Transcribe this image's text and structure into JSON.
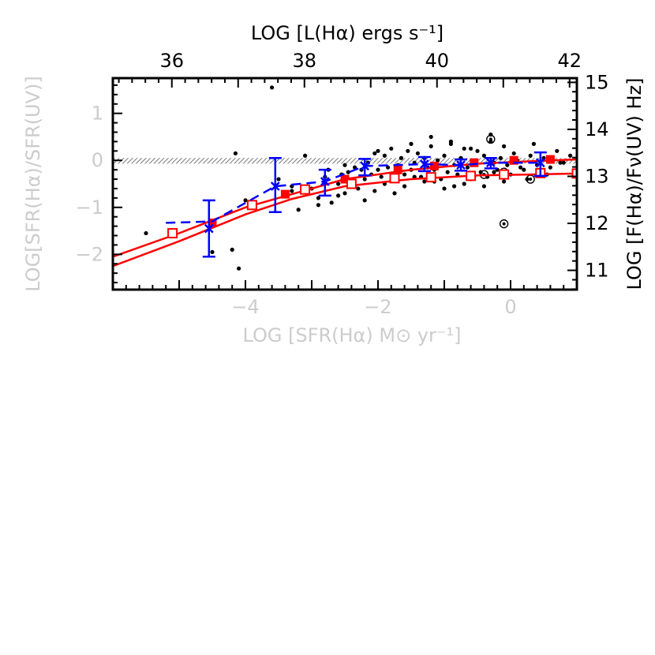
{
  "chart_data": {
    "type": "scatter",
    "title": "",
    "xlabel": "LOG [SFR(Hα) M⊙ yr⁻¹]",
    "ylabel": "LOG[SFR(Hα)/SFR(UV)]",
    "top_xlabel": "LOG [L(Hα) ergs s⁻¹]",
    "right_ylabel": "LOG [F(Hα)/Fν(UV) Hz]",
    "xlim": [
      -6.0,
      1.0
    ],
    "ylim": [
      -2.75,
      1.75
    ],
    "top_xlim": [
      35.11,
      42.11
    ],
    "right_ylim": [
      10.59,
      15.09
    ],
    "x_ticks": [
      -4,
      -2,
      0
    ],
    "x_tick_labels": [
      "−4",
      "−2",
      "0"
    ],
    "y_ticks": [
      -2,
      -1,
      0,
      1
    ],
    "y_tick_labels": [
      "−2",
      "−1",
      "0",
      "1"
    ],
    "top_ticks": [
      36,
      38,
      40,
      42
    ],
    "top_tick_labels": [
      "36",
      "38",
      "40",
      "42"
    ],
    "right_ticks": [
      11,
      12,
      13,
      14,
      15
    ],
    "right_tick_labels": [
      "11",
      "12",
      "13",
      "14",
      "15"
    ],
    "grid": false,
    "hatched_band": {
      "y_low": -0.07,
      "y_high": 0.05,
      "color": "#777777"
    },
    "series": [
      {
        "style": "points",
        "color": "#000000",
        "x": [
          -5.5,
          -4.2,
          -4.5,
          -4.1,
          -3.5,
          -3.3,
          -3.2,
          -3.0,
          -2.9,
          -2.8,
          -2.7,
          -2.6,
          -2.55,
          -2.5,
          -2.45,
          -2.4,
          -2.35,
          -2.3,
          -2.25,
          -2.2,
          -2.15,
          -2.1,
          -2.05,
          -2.0,
          -1.95,
          -1.9,
          -1.85,
          -1.8,
          -1.75,
          -1.7,
          -1.65,
          -1.6,
          -1.55,
          -1.5,
          -1.45,
          -1.4,
          -1.35,
          -1.3,
          -1.25,
          -1.2,
          -1.15,
          -1.1,
          -1.05,
          -1.0,
          -0.95,
          -0.9,
          -0.85,
          -0.8,
          -0.75,
          -0.7,
          -0.65,
          -0.6,
          -0.55,
          -0.5,
          -0.45,
          -0.4,
          -0.35,
          -0.3,
          -0.25,
          -0.2,
          -0.15,
          -0.1,
          -0.05,
          0.0,
          0.05,
          0.1,
          0.2,
          0.3,
          0.4,
          0.5,
          0.6,
          0.7,
          0.8,
          0.9,
          -3.3,
          -2.9,
          -2.6,
          -2.2,
          -1.9,
          -1.6,
          -1.3,
          -1.0,
          -0.7,
          -0.4,
          -0.1,
          0.25,
          -2.75,
          -2.35,
          -2.05,
          -1.75,
          -1.45,
          -1.15,
          -0.85,
          -0.55,
          -0.25,
          0.15,
          0.55,
          -3.1,
          -2.5,
          -2.0,
          -1.5,
          -1.2,
          -0.9,
          -0.6,
          -0.3,
          0.35,
          0.75,
          -3.6,
          -4.0,
          -4.15
        ],
        "y": [
          -1.55,
          -1.9,
          -1.95,
          -2.3,
          -0.4,
          -0.55,
          -1.05,
          -0.6,
          -0.8,
          -0.35,
          -0.9,
          -0.5,
          -0.3,
          -0.7,
          -0.25,
          -0.45,
          -0.15,
          -0.6,
          -0.2,
          -0.4,
          -0.05,
          -0.3,
          0.15,
          -0.2,
          -0.35,
          0.1,
          -0.15,
          0.25,
          -0.4,
          -0.1,
          0.05,
          -0.3,
          0.2,
          -0.2,
          -0.05,
          0.15,
          -0.35,
          0.05,
          -0.15,
          0.3,
          -0.2,
          0.0,
          -0.4,
          0.1,
          -0.25,
          0.35,
          -0.1,
          -0.3,
          0.05,
          0.25,
          -0.15,
          -0.4,
          0.0,
          0.2,
          -0.25,
          0.1,
          -0.35,
          0.4,
          -0.05,
          -0.2,
          0.05,
          0.3,
          -0.1,
          -0.3,
          0.15,
          0.0,
          -0.2,
          0.1,
          -0.1,
          0.05,
          -0.15,
          0.2,
          -0.05,
          0.1,
          -0.65,
          -0.95,
          -0.75,
          -0.85,
          -0.5,
          -0.55,
          -0.45,
          -0.6,
          -0.5,
          -0.55,
          -0.45,
          -0.4,
          -0.2,
          -0.55,
          -0.65,
          -0.7,
          -0.35,
          -0.45,
          -0.55,
          -0.35,
          -0.25,
          -0.15,
          -0.3,
          0.1,
          -0.1,
          0.2,
          0.35,
          0.5,
          0.4,
          0.25,
          0.55,
          0.35,
          -0.05,
          1.55,
          -0.85,
          0.15
        ]
      },
      {
        "style": "circled-dot",
        "color": "#000000",
        "x": [
          -0.3,
          -0.1,
          -0.4,
          0.3,
          -0.1
        ],
        "y": [
          0.45,
          -0.25,
          -0.3,
          -0.4,
          -1.35
        ]
      },
      {
        "style": "line",
        "color": "#ff0000",
        "x": [
          -6.0,
          -5.0,
          -4.0,
          -3.3,
          -2.5,
          -1.5,
          -0.5,
          0.3,
          1.0
        ],
        "y": [
          -2.05,
          -1.55,
          -1.0,
          -0.72,
          -0.4,
          -0.2,
          -0.07,
          -0.02,
          0.02
        ]
      },
      {
        "style": "line",
        "color": "#ff0000",
        "x": [
          -6.0,
          -5.0,
          -4.0,
          -3.3,
          -2.5,
          -1.5,
          -0.5,
          0.3,
          1.0
        ],
        "y": [
          -2.25,
          -1.72,
          -1.15,
          -0.82,
          -0.55,
          -0.4,
          -0.32,
          -0.3,
          -0.28
        ]
      },
      {
        "style": "filled-square",
        "color": "#ff0000",
        "x": [
          -4.5,
          -3.4,
          -2.5,
          -1.7,
          -1.15,
          -0.55,
          0.05,
          0.6
        ],
        "y": [
          -1.33,
          -0.72,
          -0.4,
          -0.2,
          -0.12,
          -0.05,
          0.0,
          0.02
        ]
      },
      {
        "style": "open-square",
        "color": "#ff0000",
        "x": [
          -5.1,
          -3.9,
          -3.1,
          -2.4,
          -1.75,
          -1.2,
          -0.6,
          -0.1,
          0.45,
          1.0
        ],
        "y": [
          -1.55,
          -0.95,
          -0.62,
          -0.5,
          -0.38,
          -0.36,
          -0.33,
          -0.3,
          -0.27,
          -0.28
        ]
      },
      {
        "style": "dashed-line",
        "color": "#0000ff",
        "x": [
          -5.2,
          -4.5,
          -3.55,
          -2.8,
          -2.2,
          -1.3,
          -0.75,
          -0.3,
          0.45
        ],
        "y": [
          -1.33,
          -1.3,
          -0.55,
          -0.45,
          -0.12,
          -0.08,
          -0.1,
          -0.05,
          -0.05
        ]
      },
      {
        "style": "cross-errorbar",
        "color": "#0000ff",
        "x": [
          -4.55,
          -3.55,
          -2.8,
          -2.2,
          -1.3,
          -0.75,
          -0.3,
          0.45
        ],
        "y": [
          -1.45,
          -0.55,
          -0.45,
          -0.12,
          -0.08,
          -0.1,
          -0.05,
          -0.05
        ],
        "err_low": [
          0.6,
          0.55,
          0.3,
          0.2,
          0.15,
          0.12,
          0.12,
          0.28
        ],
        "err_high": [
          0.6,
          0.6,
          0.25,
          0.15,
          0.15,
          0.12,
          0.1,
          0.22
        ]
      }
    ]
  }
}
